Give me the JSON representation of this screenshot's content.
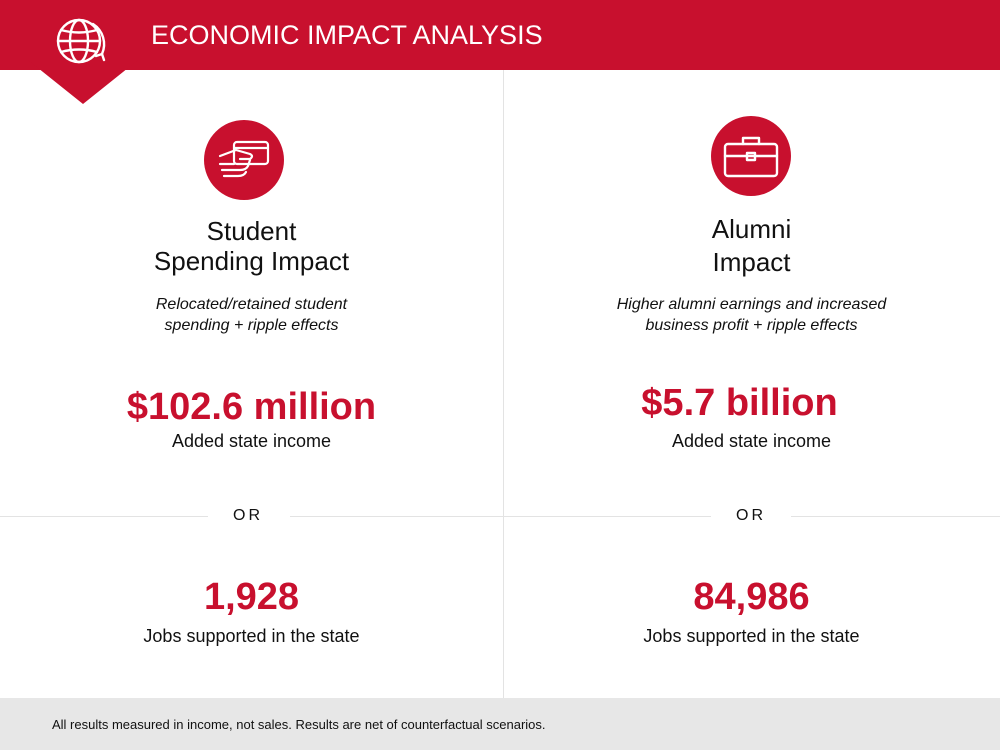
{
  "header": {
    "title": "ECONOMIC IMPACT ANALYSIS",
    "icon": "globe-icon",
    "background_color": "#c8102e"
  },
  "student": {
    "icon": "credit-card-hand-icon",
    "title_line1": "Student",
    "title_line2": "Spending Impact",
    "desc_line1": "Relocated/retained student",
    "desc_line2": "spending + ripple effects",
    "income_value": "$102.6 million",
    "income_label": "Added state income",
    "or_text": "OR",
    "jobs_value": "1,928",
    "jobs_label": "Jobs supported in the state"
  },
  "alumni": {
    "icon": "briefcase-icon",
    "title_line1": "Alumni",
    "title_line2": "Impact",
    "desc_line1": "Higher alumni earnings and increased",
    "desc_line2": "business profit + ripple effects",
    "income_value": "$5.7 billion",
    "income_label": "Added state income",
    "or_text": "OR",
    "jobs_value": "84,986",
    "jobs_label": "Jobs supported in the state"
  },
  "footer": {
    "note": "All results measured in income, not sales. Results are net of counterfactual scenarios."
  },
  "colors": {
    "accent": "#c8102e",
    "footer_bg": "#e7e7e7"
  }
}
